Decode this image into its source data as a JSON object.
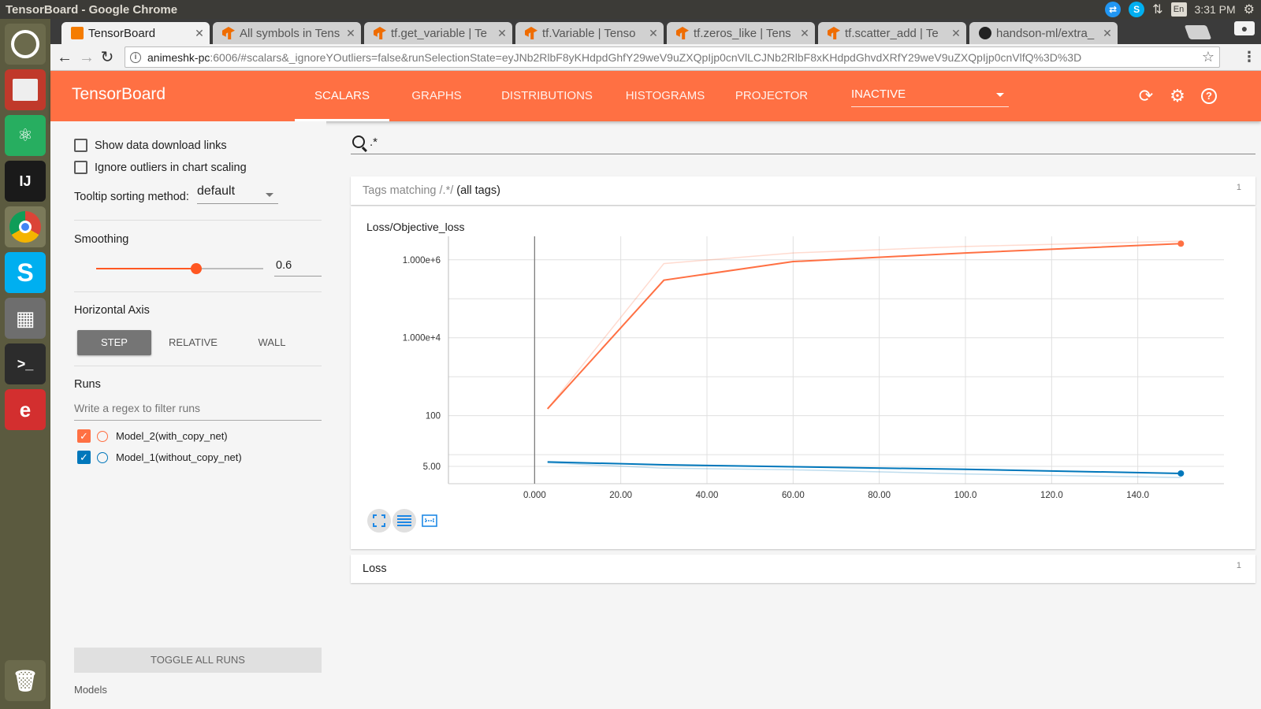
{
  "os": {
    "window_title": "TensorBoard - Google Chrome",
    "time": "3:31 PM",
    "lang": "En"
  },
  "browser": {
    "tabs": [
      {
        "label": "TensorBoard",
        "active": true
      },
      {
        "label": "All symbols in Tens"
      },
      {
        "label": "tf.get_variable | Te"
      },
      {
        "label": "tf.Variable | Tenso"
      },
      {
        "label": "tf.zeros_like | Tens"
      },
      {
        "label": "tf.scatter_add | Te"
      },
      {
        "label": "handson-ml/extra_"
      }
    ],
    "url_host": "animeshk-pc",
    "url_rest": ":6006/#scalars&_ignoreYOutliers=false&runSelectionState=eyJNb2RlbF8yKHdpdGhfY29weV9uZXQpIjp0cnVlLCJNb2RlbF8xKHdpdGhvdXRfY29weV9uZXQpIjp0cnVlfQ%3D%3D"
  },
  "header": {
    "logo": "TensorBoard",
    "tabs": [
      "SCALARS",
      "GRAPHS",
      "DISTRIBUTIONS",
      "HISTOGRAMS",
      "PROJECTOR"
    ],
    "active_tab": "SCALARS",
    "inactive_select": "INACTIVE"
  },
  "sidebar": {
    "show_download_links": "Show data download links",
    "ignore_outliers": "Ignore outliers in chart scaling",
    "tooltip_label": "Tooltip sorting method:",
    "tooltip_value": "default",
    "smoothing_title": "Smoothing",
    "smoothing_value": "0.6",
    "smoothing_level": 0.6,
    "horizontal_axis_title": "Horizontal Axis",
    "axis_options": [
      "STEP",
      "RELATIVE",
      "WALL"
    ],
    "runs_title": "Runs",
    "runs_filter_placeholder": "Write a regex to filter runs",
    "runs": [
      {
        "name": "Model_2(with_copy_net)",
        "color": "#ff7043",
        "checked": true
      },
      {
        "name": "Model_1(without_copy_net)",
        "color": "#0077bb",
        "checked": true
      }
    ],
    "toggle_all": "TOGGLE ALL RUNS",
    "models_label": "Models"
  },
  "main": {
    "search_value": ".*",
    "tags_prefix": "Tags matching ",
    "tags_regex": "/.*/",
    "tags_suffix": " (all tags)",
    "tags_count": "1",
    "loss_group_title": "Loss",
    "loss_group_count": "1"
  },
  "chart_data": {
    "type": "line",
    "title": "Loss/Objective_loss",
    "xlabel": "",
    "ylabel": "",
    "y_scale": "log",
    "x_ticks": [
      "0.000",
      "20.00",
      "40.00",
      "60.00",
      "80.00",
      "100.0",
      "120.0",
      "140.0"
    ],
    "x_tick_values": [
      0,
      20,
      40,
      60,
      80,
      100,
      120,
      140
    ],
    "y_ticks": [
      "1.000e+6",
      "1.000e+4",
      "100",
      "5.00"
    ],
    "y_tick_values": [
      1000000,
      10000,
      100,
      5
    ],
    "xlim": [
      -20,
      160
    ],
    "ylim": [
      1.8,
      4000000
    ],
    "grid": true,
    "series": [
      {
        "name": "Model_2(with_copy_net)",
        "color": "#ff7043",
        "smoothed": {
          "x": [
            3,
            30,
            60,
            100,
            150
          ],
          "y": [
            150,
            300000,
            900000,
            1500000,
            2600000
          ]
        },
        "raw": {
          "x": [
            3,
            30,
            60,
            100,
            150
          ],
          "y": [
            150,
            800000,
            1500000,
            2200000,
            3000000
          ]
        }
      },
      {
        "name": "Model_1(without_copy_net)",
        "color": "#0077bb",
        "smoothed": {
          "x": [
            3,
            30,
            60,
            100,
            150
          ],
          "y": [
            6.5,
            5.5,
            4.9,
            4.2,
            3.3
          ]
        },
        "raw": {
          "x": [
            3,
            30,
            60,
            100,
            150
          ],
          "y": [
            6.2,
            4.5,
            4.1,
            3.2,
            2.6
          ]
        }
      }
    ]
  }
}
